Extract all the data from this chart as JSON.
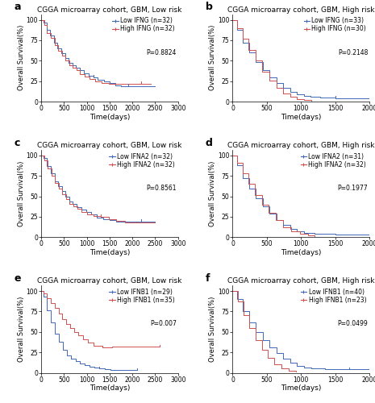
{
  "panels": [
    {
      "label": "a",
      "title": "CGGA microarray cohort, GBM, Low risk",
      "gene": "IFNG",
      "low_n": 32,
      "high_n": 32,
      "pval": "P=0.8824",
      "xmax": 3000,
      "xticks": [
        0,
        500,
        1000,
        1500,
        2000,
        2500,
        3000
      ],
      "low_times": [
        0,
        50,
        120,
        200,
        280,
        360,
        440,
        520,
        600,
        680,
        760,
        840,
        940,
        1040,
        1140,
        1240,
        1380,
        1500,
        1620,
        1750,
        1900,
        2100,
        2300,
        2500
      ],
      "low_surv": [
        100,
        97,
        88,
        81,
        72,
        65,
        59,
        53,
        47,
        44,
        41,
        38,
        35,
        32,
        30,
        27,
        25,
        23,
        20,
        19,
        19,
        19,
        19,
        19
      ],
      "high_times": [
        0,
        60,
        130,
        210,
        290,
        370,
        450,
        530,
        610,
        690,
        770,
        850,
        950,
        1060,
        1180,
        1320,
        1480,
        1640,
        1800,
        2000,
        2200,
        2400
      ],
      "high_surv": [
        100,
        94,
        84,
        78,
        69,
        62,
        56,
        50,
        44,
        41,
        38,
        34,
        31,
        28,
        25,
        23,
        22,
        22,
        22,
        22,
        22,
        22
      ]
    },
    {
      "label": "b",
      "title": "CGGA microarray cohort, GBM, High risk",
      "gene": "IFNG",
      "low_n": 33,
      "high_n": 30,
      "pval": "P=0.2148",
      "xmax": 2000,
      "xticks": [
        0,
        500,
        1000,
        1500,
        2000
      ],
      "low_times": [
        0,
        70,
        150,
        240,
        340,
        440,
        540,
        640,
        740,
        840,
        940,
        1040,
        1140,
        1280,
        1500,
        1850,
        2000
      ],
      "low_surv": [
        100,
        88,
        72,
        60,
        48,
        38,
        30,
        23,
        17,
        12,
        9,
        7,
        6,
        5,
        4,
        4,
        4
      ],
      "high_times": [
        0,
        65,
        145,
        235,
        335,
        435,
        535,
        640,
        740,
        840,
        940,
        1040,
        1150
      ],
      "high_surv": [
        100,
        90,
        77,
        63,
        50,
        37,
        26,
        17,
        10,
        6,
        3,
        2,
        1
      ]
    },
    {
      "label": "c",
      "title": "CGGA microarray cohort, GBM, Low risk",
      "gene": "IFNA2",
      "low_n": 32,
      "high_n": 32,
      "pval": "P=0.8561",
      "xmax": 3000,
      "xticks": [
        0,
        500,
        1000,
        1500,
        2000,
        2500,
        3000
      ],
      "low_times": [
        0,
        55,
        130,
        210,
        290,
        370,
        450,
        530,
        610,
        690,
        780,
        880,
        990,
        1100,
        1220,
        1360,
        1500,
        1650,
        1820,
        2000,
        2200,
        2500
      ],
      "low_surv": [
        100,
        97,
        87,
        78,
        68,
        62,
        56,
        50,
        44,
        41,
        37,
        34,
        31,
        28,
        24,
        22,
        21,
        19,
        19,
        19,
        19,
        19
      ],
      "high_times": [
        0,
        60,
        140,
        220,
        305,
        385,
        465,
        545,
        625,
        705,
        790,
        890,
        1010,
        1150,
        1310,
        1480,
        1650,
        1840,
        2050,
        2500
      ],
      "high_surv": [
        100,
        94,
        84,
        75,
        66,
        59,
        53,
        47,
        41,
        38,
        35,
        31,
        28,
        26,
        25,
        22,
        20,
        18,
        18,
        18
      ]
    },
    {
      "label": "d",
      "title": "CGGA microarray cohort, GBM, High risk",
      "gene": "IFNA2",
      "low_n": 31,
      "high_n": 32,
      "pval": "P=0.1977",
      "xmax": 2000,
      "xticks": [
        0,
        500,
        1000,
        1500,
        2000
      ],
      "low_times": [
        0,
        70,
        150,
        240,
        340,
        440,
        540,
        640,
        740,
        840,
        940,
        1040,
        1200,
        1500,
        2000
      ],
      "low_surv": [
        100,
        88,
        72,
        59,
        48,
        38,
        29,
        21,
        15,
        10,
        7,
        5,
        4,
        3,
        3
      ],
      "high_times": [
        0,
        65,
        145,
        235,
        330,
        430,
        530,
        630,
        740,
        860,
        980,
        1100,
        1200
      ],
      "high_surv": [
        100,
        91,
        78,
        65,
        52,
        40,
        30,
        21,
        12,
        7,
        4,
        2,
        1
      ]
    },
    {
      "label": "e",
      "title": "CGGA microarray cohort, GBM, Low risk",
      "gene": "IFNB1",
      "low_n": 29,
      "high_n": 35,
      "pval": "P=0.007",
      "xmax": 3000,
      "xticks": [
        0,
        500,
        1000,
        1500,
        2000,
        2500,
        3000
      ],
      "low_times": [
        0,
        55,
        130,
        210,
        300,
        390,
        480,
        570,
        660,
        750,
        840,
        950,
        1060,
        1170,
        1280,
        1400,
        1520,
        1650,
        1800,
        1950,
        2100
      ],
      "low_surv": [
        100,
        93,
        76,
        62,
        48,
        38,
        28,
        21,
        17,
        14,
        11,
        9,
        7,
        6,
        5,
        4,
        3,
        3,
        3,
        3,
        3
      ],
      "high_times": [
        0,
        55,
        130,
        210,
        295,
        380,
        465,
        550,
        640,
        730,
        820,
        920,
        1030,
        1150,
        1350,
        1550,
        1750,
        1950,
        2150,
        2400,
        2600
      ],
      "high_surv": [
        100,
        97,
        91,
        85,
        79,
        72,
        66,
        60,
        55,
        50,
        46,
        41,
        37,
        33,
        31,
        32,
        32,
        32,
        32,
        32,
        32
      ]
    },
    {
      "label": "f",
      "title": "CGGA microarray cohort, GBM, High risk",
      "gene": "IFNB1",
      "low_n": 40,
      "high_n": 23,
      "pval": "P=0.0499",
      "xmax": 2000,
      "xticks": [
        0,
        500,
        1000,
        1500,
        2000
      ],
      "low_times": [
        0,
        70,
        150,
        240,
        340,
        440,
        540,
        640,
        740,
        840,
        940,
        1040,
        1150,
        1350,
        1700,
        2000
      ],
      "low_surv": [
        100,
        90,
        75,
        62,
        50,
        40,
        31,
        24,
        17,
        12,
        8,
        6,
        5,
        4,
        4,
        4
      ],
      "high_times": [
        0,
        75,
        155,
        245,
        335,
        425,
        515,
        610,
        710,
        820,
        930
      ],
      "high_surv": [
        100,
        87,
        70,
        55,
        40,
        28,
        18,
        10,
        5,
        2,
        1
      ]
    }
  ],
  "low_color": "#4169B8",
  "high_color": "#D05050",
  "title_fontsize": 6.5,
  "label_fontsize": 6.5,
  "tick_fontsize": 5.5,
  "legend_fontsize": 5.5,
  "pval_fontsize": 5.5,
  "ylabel": "Overall Survival(%)",
  "xlabel": "Time(days)"
}
